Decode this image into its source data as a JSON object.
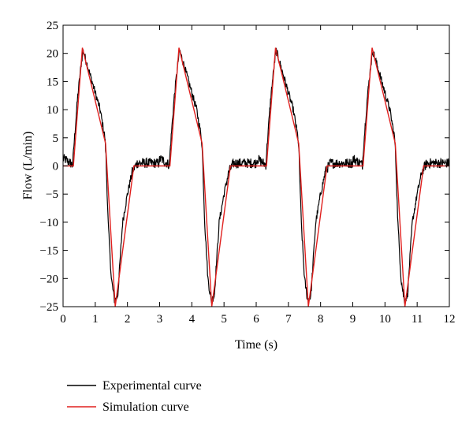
{
  "chart_data": {
    "type": "line",
    "xlabel": "Time (s)",
    "ylabel": "Flow (L/min)",
    "xlim": [
      0,
      12
    ],
    "ylim": [
      -25,
      25
    ],
    "x_ticks": [
      0,
      1,
      2,
      3,
      4,
      5,
      6,
      7,
      8,
      9,
      10,
      11,
      12
    ],
    "y_ticks": [
      -25,
      -20,
      -15,
      -10,
      -5,
      0,
      5,
      10,
      15,
      20,
      25
    ],
    "grid": false,
    "legend_position": "below-left",
    "period_s": 3,
    "series": [
      {
        "name": "Experimental curve",
        "color": "#000000",
        "cycle": {
          "t": [
            0.05,
            0.3,
            0.33,
            0.45,
            0.55,
            0.62,
            0.7,
            0.85,
            1.0,
            1.15,
            1.3,
            1.33,
            1.4,
            1.5,
            1.6,
            1.7,
            1.78,
            1.85,
            2.0,
            2.15,
            2.3,
            2.45,
            2.7,
            3.0,
            3.05
          ],
          "y": [
            1.2,
            0.2,
            3.0,
            12.0,
            17.5,
            20.5,
            19.0,
            16.0,
            13.0,
            10.0,
            5.0,
            2.0,
            -10.0,
            -20.0,
            -24.0,
            -23.0,
            -16.0,
            -10.0,
            -5.0,
            -1.0,
            0.5,
            0.5,
            0.5,
            0.5,
            0.5
          ]
        }
      },
      {
        "name": "Simulation curve",
        "color": "#e0201e",
        "cycle": {
          "t": [
            0.0,
            0.32,
            0.6,
            1.32,
            1.62,
            2.2,
            3.0
          ],
          "y": [
            0.0,
            0.0,
            21.0,
            4.0,
            -25.0,
            0.0,
            0.0
          ]
        }
      }
    ]
  }
}
